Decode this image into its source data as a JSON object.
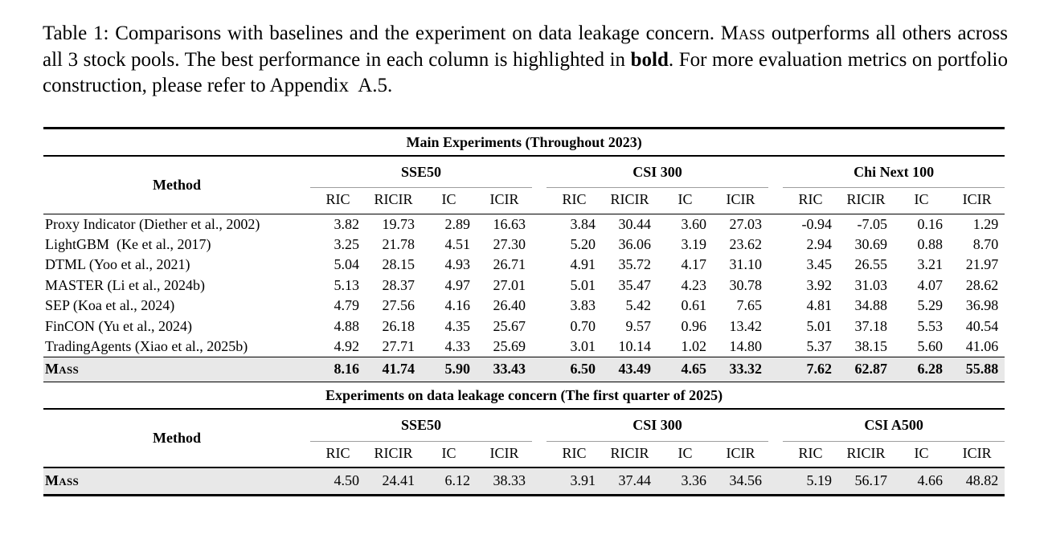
{
  "caption": {
    "parts": [
      {
        "text": "Table 1: Comparisons with baselines and the experiment on data leakage concern. ",
        "style": "normal"
      },
      {
        "text": "Mass",
        "style": "smallcaps"
      },
      {
        "text": " outperforms all others across all 3 stock pools. The best performance in each column is highlighted in ",
        "style": "normal"
      },
      {
        "text": "bold",
        "style": "bold"
      },
      {
        "text": ". For more evaluation metrics on portfolio construction, please refer to Appendix  A.5.",
        "style": "normal"
      }
    ]
  },
  "colors": {
    "row_highlight": "#e8e8e8",
    "rule": "#000000",
    "cmidrule": "#9e9e9e"
  },
  "chart_data": {
    "type": "table",
    "note": "academic results table with two sections"
  },
  "table": {
    "method_header": "Method",
    "metric_headers": [
      "RIC",
      "RICIR",
      "IC",
      "ICIR"
    ],
    "sections": [
      {
        "title": "Main Experiments (Throughout 2023)",
        "groups": [
          "SSE50",
          "CSI 300",
          "Chi Next 100"
        ],
        "rows": [
          {
            "method": "Proxy Indicator (Diether et al., 2002)",
            "smallcaps": false,
            "highlight": false,
            "bold_values": false,
            "values": [
              "3.82",
              "19.73",
              "2.89",
              "16.63",
              "3.84",
              "30.44",
              "3.60",
              "27.03",
              "-0.94",
              "-7.05",
              "0.16",
              "1.29"
            ]
          },
          {
            "method": "LightGBM  (Ke et al., 2017)",
            "smallcaps": false,
            "highlight": false,
            "bold_values": false,
            "values": [
              "3.25",
              "21.78",
              "4.51",
              "27.30",
              "5.20",
              "36.06",
              "3.19",
              "23.62",
              "2.94",
              "30.69",
              "0.88",
              "8.70"
            ]
          },
          {
            "method": "DTML (Yoo et al., 2021)",
            "smallcaps": false,
            "highlight": false,
            "bold_values": false,
            "values": [
              "5.04",
              "28.15",
              "4.93",
              "26.71",
              "4.91",
              "35.72",
              "4.17",
              "31.10",
              "3.45",
              "26.55",
              "3.21",
              "21.97"
            ]
          },
          {
            "method": "MASTER (Li et al., 2024b)",
            "smallcaps": false,
            "highlight": false,
            "bold_values": false,
            "values": [
              "5.13",
              "28.37",
              "4.97",
              "27.01",
              "5.01",
              "35.47",
              "4.23",
              "30.78",
              "3.92",
              "31.03",
              "4.07",
              "28.62"
            ]
          },
          {
            "method": "SEP (Koa et al., 2024)",
            "smallcaps": false,
            "highlight": false,
            "bold_values": false,
            "values": [
              "4.79",
              "27.56",
              "4.16",
              "26.40",
              "3.83",
              "5.42",
              "0.61",
              "7.65",
              "4.81",
              "34.88",
              "5.29",
              "36.98"
            ]
          },
          {
            "method": "FinCON (Yu et al., 2024)",
            "smallcaps": false,
            "highlight": false,
            "bold_values": false,
            "values": [
              "4.88",
              "26.18",
              "4.35",
              "25.67",
              "0.70",
              "9.57",
              "0.96",
              "13.42",
              "5.01",
              "37.18",
              "5.53",
              "40.54"
            ]
          },
          {
            "method": "TradingAgents (Xiao et al., 2025b)",
            "smallcaps": false,
            "highlight": false,
            "bold_values": false,
            "values": [
              "4.92",
              "27.71",
              "4.33",
              "25.69",
              "3.01",
              "10.14",
              "1.02",
              "14.80",
              "5.37",
              "38.15",
              "5.60",
              "41.06"
            ]
          },
          {
            "method": "Mass",
            "smallcaps": true,
            "highlight": true,
            "bold_values": true,
            "values": [
              "8.16",
              "41.74",
              "5.90",
              "33.43",
              "6.50",
              "43.49",
              "4.65",
              "33.32",
              "7.62",
              "62.87",
              "6.28",
              "55.88"
            ]
          }
        ]
      },
      {
        "title": "Experiments on data leakage concern (The first quarter of 2025)",
        "groups": [
          "SSE50",
          "CSI 300",
          "CSI A500"
        ],
        "rows": [
          {
            "method": "Mass",
            "smallcaps": true,
            "highlight": true,
            "bold_values": false,
            "values": [
              "4.50",
              "24.41",
              "6.12",
              "38.33",
              "3.91",
              "37.44",
              "3.36",
              "34.56",
              "5.19",
              "56.17",
              "4.66",
              "48.82"
            ]
          }
        ]
      }
    ]
  }
}
